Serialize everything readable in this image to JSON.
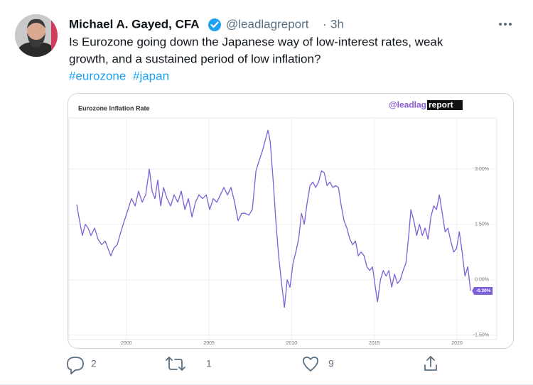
{
  "tweet": {
    "name": "Michael A. Gayed, CFA",
    "handle": "@leadlagreport",
    "separator": "·",
    "time": "3h",
    "text_lines": [
      "Is Eurozone going down the Japanese way of low-interest rates, weak",
      "growth, and a sustained period of low inflation?"
    ],
    "hashtags": [
      "#eurozone",
      "#japan"
    ],
    "replies": 2,
    "retweets": 1,
    "likes": 9
  },
  "chart_data": {
    "type": "line",
    "title": "Eurozone Inflation Rate",
    "logo": {
      "prefix": "@leadlag",
      "suffix": "report"
    },
    "color": "#7d5fd8",
    "x": [
      1997.0,
      1997.17,
      1997.34,
      1997.52,
      1997.69,
      1997.86,
      1998.08,
      1998.29,
      1998.51,
      1998.72,
      1998.89,
      1999.06,
      1999.24,
      1999.45,
      1999.67,
      1999.88,
      2000.1,
      2000.31,
      2000.53,
      2000.74,
      2000.96,
      2001.17,
      2001.39,
      2001.56,
      2001.73,
      2001.9,
      2002.08,
      2002.25,
      2002.46,
      2002.68,
      2002.89,
      2003.11,
      2003.32,
      2003.54,
      2003.75,
      2003.97,
      2004.18,
      2004.4,
      2004.61,
      2004.83,
      2005.04,
      2005.26,
      2005.47,
      2005.69,
      2005.9,
      2006.12,
      2006.33,
      2006.55,
      2006.76,
      2006.98,
      2007.19,
      2007.41,
      2007.62,
      2007.84,
      2008.05,
      2008.27,
      2008.44,
      2008.57,
      2008.7,
      2008.87,
      2009.04,
      2009.21,
      2009.39,
      2009.56,
      2009.73,
      2009.9,
      2010.08,
      2010.25,
      2010.42,
      2010.59,
      2010.76,
      2010.94,
      2011.11,
      2011.28,
      2011.45,
      2011.63,
      2011.8,
      2011.97,
      2012.14,
      2012.31,
      2012.49,
      2012.66,
      2012.83,
      2013.0,
      2013.17,
      2013.34,
      2013.52,
      2013.69,
      2013.86,
      2014.03,
      2014.2,
      2014.38,
      2014.55,
      2014.72,
      2014.89,
      2015.06,
      2015.19,
      2015.37,
      2015.54,
      2015.71,
      2015.88,
      2016.05,
      2016.22,
      2016.4,
      2016.57,
      2016.74,
      2016.91,
      2017.08,
      2017.21,
      2017.39,
      2017.56,
      2017.73,
      2017.9,
      2018.07,
      2018.25,
      2018.42,
      2018.59,
      2018.76,
      2018.93,
      2019.11,
      2019.28,
      2019.45,
      2019.62,
      2019.8,
      2019.97,
      2020.14,
      2020.31,
      2020.48,
      2020.65,
      2020.82
    ],
    "values": [
      2.04,
      1.6,
      1.2,
      1.5,
      1.4,
      1.2,
      1.4,
      1.1,
      0.95,
      1.05,
      0.85,
      0.65,
      0.85,
      0.95,
      1.3,
      1.6,
      1.9,
      2.2,
      2.0,
      2.4,
      2.1,
      2.3,
      3.0,
      2.4,
      2.2,
      2.7,
      2.0,
      2.5,
      2.2,
      2.0,
      2.3,
      2.1,
      2.4,
      1.9,
      2.2,
      1.7,
      2.1,
      2.3,
      2.2,
      2.3,
      1.9,
      2.2,
      2.1,
      2.3,
      2.5,
      2.3,
      2.5,
      2.1,
      1.6,
      1.8,
      1.8,
      1.75,
      1.9,
      2.95,
      3.25,
      3.55,
      3.85,
      4.05,
      3.75,
      2.75,
      1.6,
      0.65,
      -0.1,
      -0.75,
      0,
      -0.2,
      0.45,
      0.75,
      1.1,
      1.8,
      1.5,
      2.1,
      2.55,
      2.65,
      2.5,
      2.65,
      2.95,
      2.9,
      2.55,
      2.65,
      2.5,
      2.55,
      2.5,
      2.0,
      1.6,
      1.4,
      1.1,
      0.95,
      1.05,
      0.65,
      0.75,
      0.65,
      0.35,
      0.25,
      0.35,
      -0.2,
      -0.6,
      0,
      0.25,
      0.1,
      0.25,
      -0.2,
      0.15,
      -0.1,
      0,
      0.25,
      0.45,
      1.2,
      1.9,
      1.6,
      1.2,
      1.5,
      1.2,
      1.4,
      1.1,
      1.7,
      2.0,
      1.9,
      2.3,
      1.8,
      1.3,
      1.4,
      1.05,
      0.75,
      0.85,
      1.3,
      0.75,
      0.1,
      0.35,
      -0.3
    ],
    "last_value_label": {
      "value": -0.3,
      "label": "-0.30%"
    },
    "xlim": [
      1996.7,
      2021.2
    ],
    "xticks": [
      2000,
      2005,
      2010,
      2015,
      2020
    ],
    "ylim": [
      -1.6,
      4.5
    ],
    "yticks": [
      {
        "value": -1.5,
        "label": "-1.50%"
      },
      {
        "value": 0,
        "label": "0.00%"
      },
      {
        "value": 1.5,
        "label": "1.50%"
      },
      {
        "value": 3,
        "label": "3.00%"
      }
    ],
    "grid": true
  }
}
